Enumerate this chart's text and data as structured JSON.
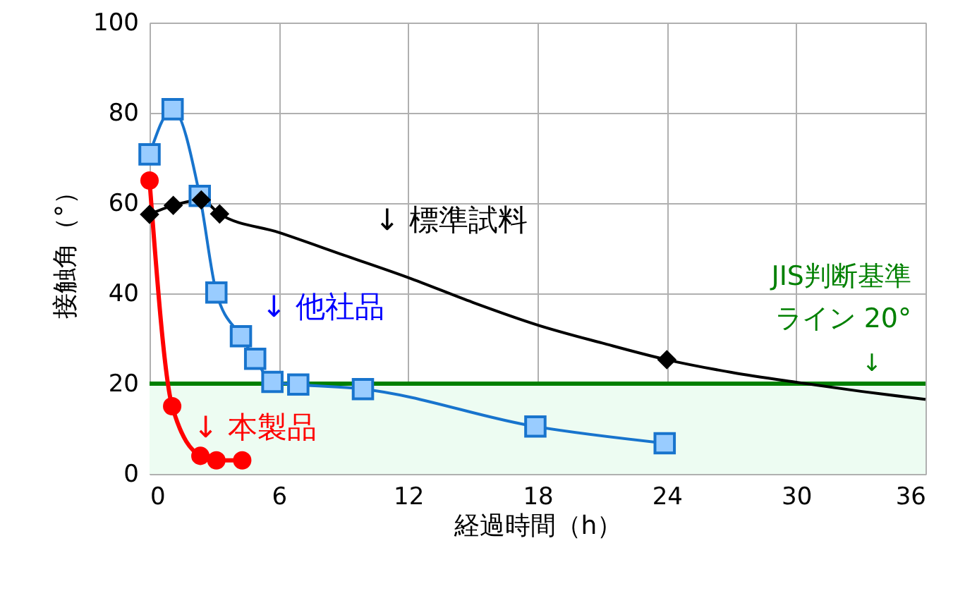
{
  "chart_data": {
    "type": "line",
    "xlabel": "経過時間（h）",
    "ylabel": "接触角（°）",
    "xlim": [
      0,
      36
    ],
    "xticks": [
      0,
      6,
      12,
      18,
      24,
      30,
      36
    ],
    "ylim": [
      0,
      100
    ],
    "yticks": [
      0,
      20,
      40,
      60,
      80,
      100
    ],
    "grid": true,
    "series": [
      {
        "name": "↓ 標準試料",
        "color": "#000000",
        "marker": "none",
        "x": [
          0,
          1.1,
          2.4,
          3.25,
          6,
          9,
          12,
          15,
          18,
          21,
          24,
          27,
          30,
          33,
          36
        ],
        "values": [
          57.5,
          59.5,
          60.7,
          57.6,
          53.5,
          48.5,
          43.5,
          38,
          33,
          29,
          25.3,
          22.5,
          20.3,
          18.3,
          16.5
        ]
      },
      {
        "type": "scatter",
        "color": "#000000",
        "marker": "diamond",
        "x": [
          0,
          1.1,
          2.4,
          3.25,
          24
        ],
        "values": [
          57.5,
          59.5,
          60.7,
          57.6,
          25.3
        ]
      },
      {
        "name": "↓ 他社品",
        "color": "#1874cd",
        "marker": "square",
        "x": [
          0,
          1.07,
          2.33,
          3.1,
          4.24,
          4.9,
          5.7,
          6.9,
          9.9,
          17.9,
          23.9
        ],
        "values": [
          70.8,
          80.8,
          61.6,
          40.2,
          30.5,
          25.5,
          20.4,
          19.8,
          18.8,
          10.5,
          6.8
        ]
      },
      {
        "name": "↓ 本製品",
        "color": "#ff0000",
        "marker": "circle",
        "x": [
          0,
          1.05,
          2.36,
          3.1,
          4.3
        ],
        "values": [
          65,
          15,
          4,
          3,
          3
        ]
      }
    ],
    "ref_lines": [
      {
        "axis": "y",
        "value": 20,
        "label": "JIS判断基準ライン 20°",
        "color": "#008000"
      }
    ],
    "bands": [
      {
        "axis": "y",
        "from": 0,
        "to": 20,
        "color": "#edfcf2"
      }
    ],
    "annotations": [
      "↓"
    ]
  }
}
